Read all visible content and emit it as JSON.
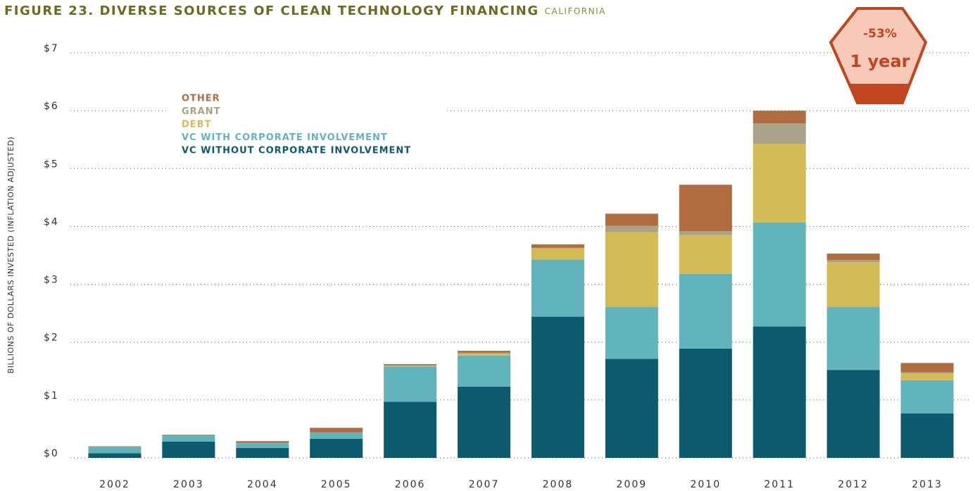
{
  "chart_data": {
    "type": "stacked_bar",
    "title": "FIGURE 23. DIVERSE SOURCES OF CLEAN TECHNOLOGY FINANCING",
    "subtitle": "CALIFORNIA",
    "y_label": "BILLIONS OF DOLLARS INVESTED (INFLATION ADJUSTED)",
    "categories": [
      "2002",
      "2003",
      "2004",
      "2005",
      "2006",
      "2007",
      "2008",
      "2009",
      "2010",
      "2011",
      "2012",
      "2013"
    ],
    "series": [
      {
        "name": "VC WITHOUT CORPORATE INVOLVEMENT",
        "color": "#0d596d",
        "values": [
          0.08,
          0.28,
          0.17,
          0.33,
          0.97,
          1.23,
          2.44,
          1.71,
          1.89,
          2.27,
          1.52,
          0.77
        ]
      },
      {
        "name": "VC WITH CORPORATE INVOLVEMENT",
        "color": "#62b4bc",
        "values": [
          0.11,
          0.11,
          0.09,
          0.11,
          0.61,
          0.54,
          0.99,
          0.9,
          1.29,
          1.8,
          1.09,
          0.57
        ]
      },
      {
        "name": "DEBT",
        "color": "#d4bb55",
        "values": [
          0,
          0,
          0,
          0,
          0.01,
          0.03,
          0.19,
          1.29,
          0.67,
          1.36,
          0.77,
          0.12
        ]
      },
      {
        "name": "GRANT",
        "color": "#a8a288",
        "values": [
          0,
          0,
          0,
          0,
          0.01,
          0.02,
          0.01,
          0.11,
          0.07,
          0.35,
          0.04,
          0.02
        ]
      },
      {
        "name": "OTHER",
        "color": "#b06b3f",
        "values": [
          0.01,
          0.01,
          0.03,
          0.08,
          0.02,
          0.03,
          0.06,
          0.21,
          0.8,
          0.22,
          0.11,
          0.16
        ]
      }
    ],
    "ylim": [
      0,
      7
    ],
    "yticks": [
      {
        "value": 0,
        "label": "$0"
      },
      {
        "value": 1,
        "label": "$1"
      },
      {
        "value": 2,
        "label": "$2"
      },
      {
        "value": 3,
        "label": "$3"
      },
      {
        "value": 4,
        "label": "$4"
      },
      {
        "value": 5,
        "label": "$5"
      },
      {
        "value": 6,
        "label": "$6"
      },
      {
        "value": 7,
        "label": "$7"
      }
    ],
    "grid": true,
    "legend": "upper left",
    "annotations": [
      "-53%",
      "1 year"
    ]
  }
}
